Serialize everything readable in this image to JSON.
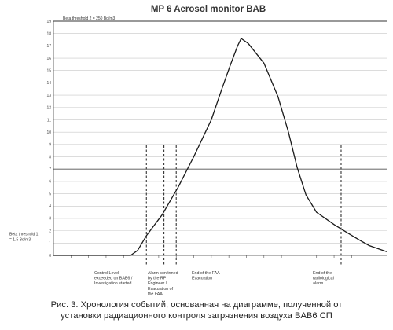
{
  "chart_data": {
    "type": "line",
    "title": "MP 6 Aerosol monitor BAB",
    "xlabel": "",
    "ylabel": "",
    "ylim": [
      0,
      19
    ],
    "yticks": [
      0,
      1,
      2,
      3,
      4,
      5,
      6,
      7,
      8,
      9,
      10,
      11,
      12,
      13,
      14,
      15,
      16,
      17,
      18,
      19
    ],
    "xlim": [
      0,
      19
    ],
    "xticks": [
      1,
      2,
      3,
      4,
      5,
      6,
      7,
      8,
      9,
      10,
      11,
      12,
      13,
      14,
      15,
      16,
      17,
      18
    ],
    "xtick_labels": [],
    "grid": "horizontal",
    "series": [
      {
        "name": "",
        "color": "#1a1a1a",
        "points": [
          [
            0,
            0
          ],
          [
            4.4,
            0
          ],
          [
            4.8,
            0.4
          ],
          [
            5.3,
            1.6
          ],
          [
            6.2,
            3.3
          ],
          [
            7.1,
            5.5
          ],
          [
            8.0,
            8.0
          ],
          [
            9.0,
            11.0
          ],
          [
            9.6,
            13.5
          ],
          [
            10.1,
            15.5
          ],
          [
            10.5,
            17.0
          ],
          [
            10.7,
            17.6
          ],
          [
            11.1,
            17.2
          ],
          [
            12.0,
            15.6
          ],
          [
            12.8,
            12.9
          ],
          [
            13.4,
            10.0
          ],
          [
            13.9,
            7.1
          ],
          [
            14.4,
            4.9
          ],
          [
            15.0,
            3.5
          ],
          [
            16.0,
            2.5
          ],
          [
            16.8,
            1.8
          ],
          [
            17.5,
            1.2
          ],
          [
            18.0,
            0.8
          ],
          [
            18.8,
            0.4
          ],
          [
            19.0,
            0.3
          ]
        ]
      }
    ],
    "reference_lines": [
      {
        "y": 1.5,
        "label": "Beta threshold 1\n= 1.5 Bq/m3",
        "color": "#2a2aa0",
        "style": "solid"
      },
      {
        "y": 7.0,
        "label": "",
        "color": "#555555",
        "style": "solid"
      },
      {
        "y": 19.0,
        "label": "Beta threshold 2 = 250 Bq/m3",
        "color": "#333333",
        "style": "solid"
      }
    ],
    "annotations": [
      {
        "x": 5.3,
        "text": "Control Level\nexceeded on BAB6 /\nInvestigation started"
      },
      {
        "x": 6.3,
        "text": "Alarm confirmed\nby the RP\nEngineer /\nEvacuation of\nthe FAA"
      },
      {
        "x": 7.0,
        "text": "End of the FAA\nEvacuation"
      },
      {
        "x": 16.4,
        "text": "End of the\nradiological\nalarm"
      }
    ]
  },
  "caption": {
    "lines": [
      "Рис. 3. Хронология событий, основанная на диаграмме, полученной от",
      "установки радиационного контроля загрязнения воздуха BAB6 СП"
    ]
  }
}
